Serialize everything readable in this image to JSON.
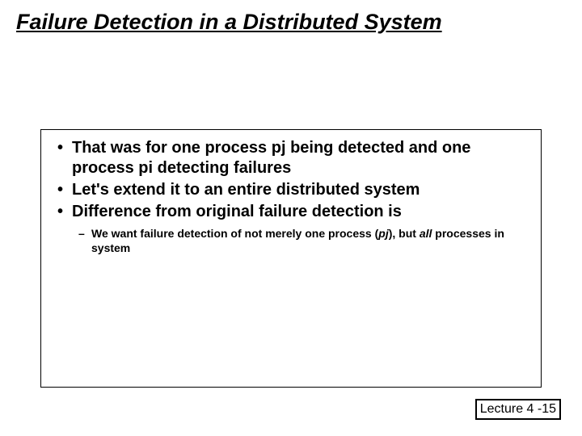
{
  "title": "Failure Detection in a Distributed System",
  "bullets": {
    "b1_pre": "That was for one process ",
    "b1_pj": "pj",
    "b1_mid": " being detected and one process ",
    "b1_pi": "pi",
    "b1_post": " detecting failures",
    "b2": "Let's extend it to an entire distributed system",
    "b3": "Difference from original failure detection is"
  },
  "sub": {
    "s1_pre": "We want failure detection of not merely one process (",
    "s1_pj": "pj",
    "s1_mid": "), but ",
    "s1_all": "all",
    "s1_post": " processes in system"
  },
  "footer": "Lecture 4 -15"
}
